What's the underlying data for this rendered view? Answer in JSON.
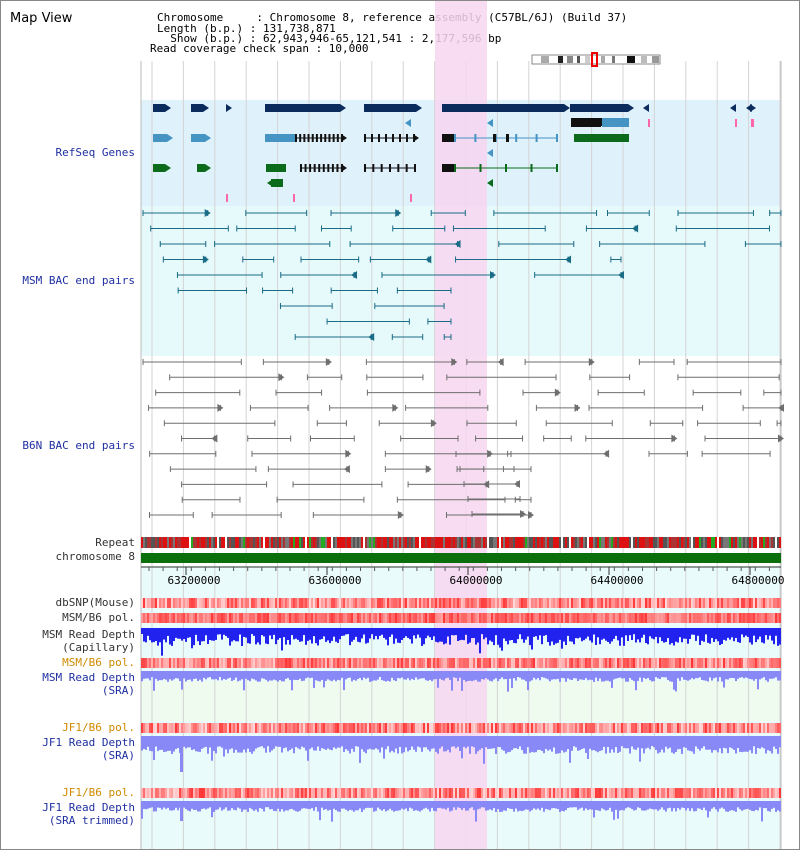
{
  "header": {
    "title": "Map View",
    "line1": "Chromosome     : Chromosome 8, reference assembly (C57BL/6J) (Build 37)",
    "line2": "Length (b.p.) : 131,738,871",
    "line3": "  Show (b.p.) : 62,943,946-65,121,541 : 2,177,596 bp",
    "line4": "Read coverage check span : 10,000"
  },
  "tracks": {
    "refseq": "RefSeq Genes",
    "msm_bac": "MSM BAC end pairs",
    "b6n_bac": "B6N BAC end pairs",
    "repeat": "Repeat",
    "chromosome": "chromosome 8",
    "dbsnp": "dbSNP(Mouse)",
    "msm_pol_cap": "MSM/B6 pol.",
    "msm_depth_cap_1": "MSM Read Depth",
    "msm_depth_cap_2": "(Capillary)",
    "msm_pol_sra": "MSM/B6 pol.",
    "msm_depth_sra_1": "MSM Read Depth",
    "msm_depth_sra_2": "(SRA)",
    "jf1_pol": "JF1/B6 pol.",
    "jf1_depth_1": "JF1 Read Depth",
    "jf1_depth_2": "(SRA)",
    "jf1_pol_t": "JF1/B6 pol.",
    "jf1_depth_t_1": "JF1 Read Depth",
    "jf1_depth_t_2": "(SRA trimmed)"
  },
  "axis": {
    "ticks": [
      "63200000",
      "63600000",
      "64000000",
      "64400000",
      "64800000"
    ]
  },
  "colors": {
    "refseq_bg": "#dff1fb",
    "bac_bg": "#e6fafb",
    "highlight": "#f7d6f0",
    "gene_dark": "#0b2b5c",
    "gene_light": "#4594c4",
    "gene_green": "#0b6b1a",
    "msm_line": "#1a6b86",
    "b6n_line": "#6e6e6e",
    "chrom_green": "#0b6f0b",
    "depth_blue": "#2222ee",
    "depth_light": "#8888f6"
  }
}
